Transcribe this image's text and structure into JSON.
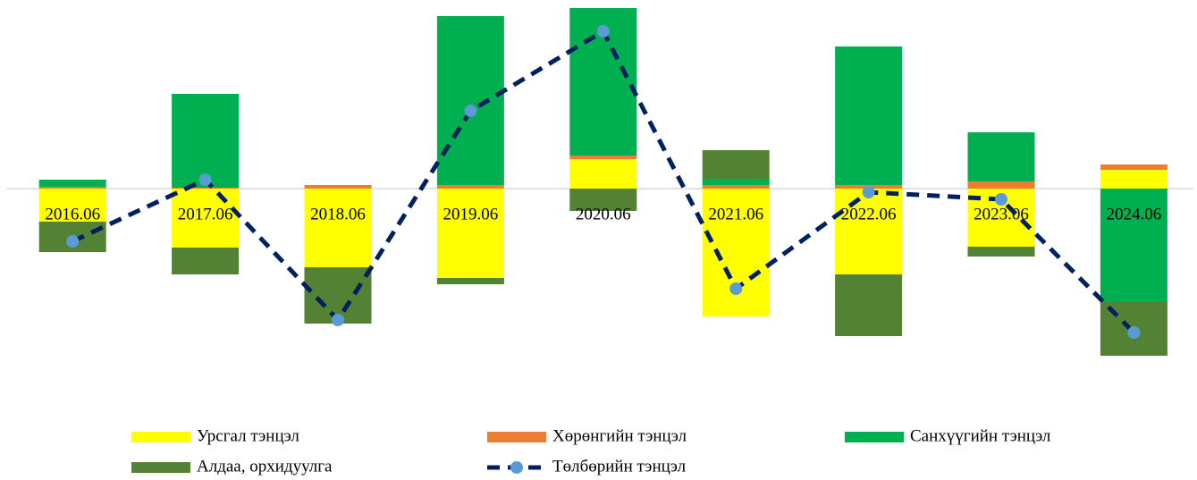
{
  "chart_data": {
    "type": "bar",
    "stacked": true,
    "categories": [
      "2016.06",
      "2017.06",
      "2018.06",
      "2019.06",
      "2020.06",
      "2021.06",
      "2022.06",
      "2023.06",
      "2024.06"
    ],
    "series": [
      {
        "name": "Урсгал тэнцэл",
        "color": "#ffff00",
        "values": [
          -3.7,
          -6.6,
          -8.8,
          -10.0,
          3.3,
          -14.3,
          -9.6,
          -6.5,
          2.1
        ]
      },
      {
        "name": "Хөрөнгийн тэнцэл",
        "color": "#ed7d31",
        "values": [
          0.2,
          0.1,
          0.4,
          0.4,
          0.4,
          0.4,
          0.4,
          0.8,
          0.6
        ]
      },
      {
        "name": "Санхүүгийн тэнцэл",
        "color": "#00b050",
        "values": [
          0.8,
          10.5,
          0.0,
          18.9,
          16.5,
          0.7,
          15.5,
          5.5,
          -12.7
        ]
      },
      {
        "name": "Алдаа, орхидуулга",
        "color": "#548235",
        "values": [
          -3.4,
          -3.0,
          -6.3,
          -0.7,
          -2.5,
          3.2,
          -6.9,
          -1.1,
          -6.0
        ]
      },
      {
        "name": "Төлбөрийн тэнцэл",
        "type": "line",
        "color": "#002060",
        "marker_color": "#5b9bd5",
        "values": [
          -5.9,
          1.0,
          -14.7,
          8.7,
          17.6,
          -11.2,
          -0.4,
          -1.2,
          -16.1
        ]
      }
    ],
    "ylim": [
      -22,
      21
    ]
  }
}
